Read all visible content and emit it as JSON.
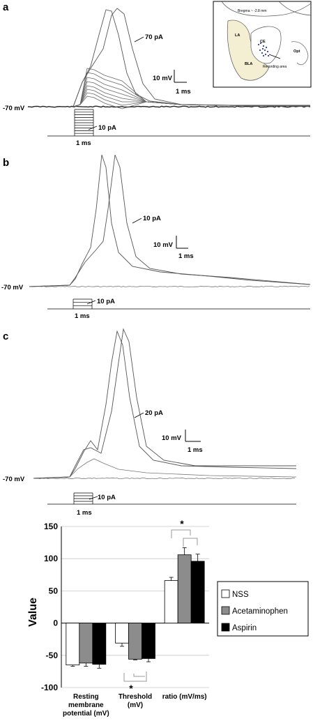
{
  "panels": [
    {
      "letter": "a",
      "resting_label": "-70 mV",
      "trace_label": "70 pA",
      "step_label": "10 pA",
      "scale_v": "10 mV",
      "scale_t": "1 ms",
      "time_label": "1 ms"
    },
    {
      "letter": "b",
      "resting_label": "-70 mV",
      "trace_label": "10 pA",
      "step_label": "10 pA",
      "scale_v": "10 mV",
      "scale_t": "1 ms",
      "time_label": "1 ms"
    },
    {
      "letter": "c",
      "resting_label": "-70 mV",
      "trace_label": "20 pA",
      "step_label": "10 pA",
      "scale_v": "10 mV",
      "scale_t": "1 ms",
      "time_label": "1 ms"
    }
  ],
  "inset": {
    "bregma": "Bregma ~ -2.8 mm",
    "la": "LA",
    "bla": "BLA",
    "ce": "CE",
    "opt": "Opt",
    "recording": "Recording area",
    "colors": {
      "nucleus_fill": "#f4efd2",
      "dots": "#2f3f9a"
    }
  },
  "chart_data": {
    "type": "bar",
    "ylabel": "Value",
    "ylim": [
      -100,
      150
    ],
    "yticks": [
      "150",
      "100",
      "50",
      "0",
      "-50",
      "-100"
    ],
    "grid": true,
    "legend_position": "right",
    "categories": [
      [
        "Resting",
        "membrane",
        "potential (mV)"
      ],
      [
        "Threshold",
        "(mV)"
      ],
      [
        "ratio (mV/ms)"
      ]
    ],
    "series": [
      {
        "name": "NSS",
        "values": [
          -65,
          -31,
          66
        ],
        "errors": [
          2,
          5,
          5
        ],
        "color": "#ffffff"
      },
      {
        "name": "Acetaminophen",
        "values": [
          -62,
          -56,
          106
        ],
        "errors": [
          5,
          1,
          11
        ],
        "color": "#8c8c8c"
      },
      {
        "name": "Aspirin",
        "values": [
          -64,
          -55,
          96
        ],
        "errors": [
          6,
          5,
          11
        ],
        "color": "#000000"
      }
    ],
    "annotations": [
      "*",
      "*"
    ]
  }
}
